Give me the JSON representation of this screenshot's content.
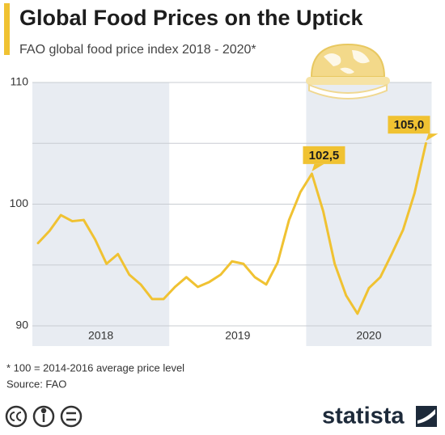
{
  "chart_data": {
    "type": "line",
    "title": "Global Food Prices on the Uptick",
    "subtitle": "FAO global food price index 2018 - 2020*",
    "footnote": "* 100 = 2014-2016 average price level",
    "source": "Source: FAO",
    "brand": "statista",
    "categories": [
      null,
      null,
      null,
      null,
      null,
      null,
      null,
      null,
      null,
      null,
      null,
      null,
      null,
      null,
      null,
      null,
      null,
      null,
      null,
      null,
      null,
      null,
      null,
      null,
      null,
      null,
      null,
      null,
      null,
      null,
      null,
      null,
      null,
      null,
      null
    ],
    "values": [
      96.8,
      97.8,
      99.1,
      98.6,
      98.7,
      97.1,
      95.1,
      95.9,
      94.2,
      93.4,
      92.2,
      92.2,
      93.2,
      94.0,
      93.2,
      93.6,
      94.2,
      95.3,
      95.1,
      94.0,
      93.4,
      95.2,
      98.7,
      101.0,
      102.5,
      99.4,
      95.1,
      92.5,
      91.0,
      93.1,
      94.0,
      95.9,
      97.9,
      100.9,
      105.0
    ],
    "color": "#f0c232",
    "periods": [
      {
        "label": "2018",
        "months": 12,
        "shaded": true
      },
      {
        "label": "2019",
        "months": 12,
        "shaded": false
      },
      {
        "label": "2020",
        "months": 11,
        "shaded": true
      }
    ],
    "annotations": [
      {
        "index": 24,
        "label": "102,5"
      },
      {
        "index": 34,
        "label": "105,0"
      }
    ],
    "ylim": [
      90,
      110
    ],
    "yticks": [
      90,
      100,
      110
    ],
    "minor_yticks": [
      95,
      105
    ],
    "grid": true
  }
}
